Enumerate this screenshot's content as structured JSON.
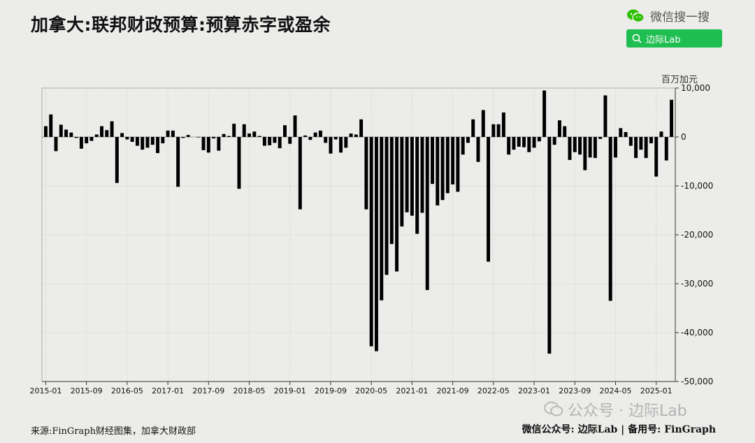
{
  "title": "加拿大:联邦财政预算:预算赤字或盈余",
  "header": {
    "wechat_label": "微信搜一搜",
    "search_label": "边际Lab"
  },
  "footer": {
    "source": "来源:FinGraph财经图集，加拿大财政部",
    "credit": "微信公众号: 边际Lab | 备用号: FinGraph"
  },
  "watermark": "公众号 · 边际Lab",
  "colors": {
    "bar": "#000000",
    "grid": "#b9b9b5",
    "brand_green": "#1fbe50"
  },
  "chart_data": {
    "type": "bar",
    "ylabel": "百万加元",
    "ylim": [
      -50000,
      10000
    ],
    "yticks": [
      10000,
      0,
      -10000,
      -20000,
      -30000,
      -40000,
      -50000
    ],
    "ytick_labels": [
      "10,000",
      "0",
      "-10,000",
      "-20,000",
      "-30,000",
      "-40,000",
      "-50,000"
    ],
    "grid": "vertical-dotted",
    "start_month": "2015-01",
    "xtick_labels": [
      "2015-01",
      "2015-09",
      "2016-05",
      "2017-01",
      "2017-09",
      "2018-05",
      "2019-01",
      "2019-09",
      "2020-05",
      "2021-01",
      "2021-09",
      "2022-05",
      "2023-01",
      "2023-09",
      "2024-05",
      "2025-01"
    ],
    "values": [
      2200,
      4600,
      -2900,
      2500,
      1500,
      900,
      -200,
      -2400,
      -1300,
      -800,
      500,
      2200,
      1400,
      3200,
      -9400,
      800,
      -500,
      -1000,
      -1800,
      -2600,
      -2200,
      -1600,
      -3300,
      -1300,
      1300,
      1300,
      -10200,
      -200,
      400,
      0,
      -100,
      -2700,
      -3200,
      -300,
      -2800,
      600,
      200,
      2700,
      -10600,
      2600,
      700,
      1100,
      200,
      -1800,
      -1700,
      -1200,
      -2300,
      2400,
      -1400,
      4400,
      -14800,
      300,
      -600,
      900,
      1300,
      -1200,
      -3400,
      -500,
      -3200,
      -2200,
      700,
      500,
      3600,
      -14800,
      -42800,
      -43800,
      -33400,
      -28200,
      -21900,
      -27500,
      -18300,
      -15400,
      -16100,
      -19800,
      -15500,
      -31300,
      -9600,
      -14000,
      -12900,
      -11500,
      -9700,
      -11200,
      -3600,
      -1200,
      3600,
      -5100,
      5500,
      -25500,
      2600,
      2600,
      5000,
      -3600,
      -2600,
      -2000,
      -2100,
      -3100,
      -2200,
      -900,
      9500,
      -44300,
      -1600,
      3400,
      2200,
      -4700,
      -3100,
      -3600,
      -6800,
      -4200,
      -4300,
      -400,
      8500,
      -33500,
      -4200,
      1800,
      1000,
      -1800,
      -4300,
      -2600,
      -4300,
      -1300,
      -8100,
      1100,
      -4800,
      7600
    ]
  }
}
